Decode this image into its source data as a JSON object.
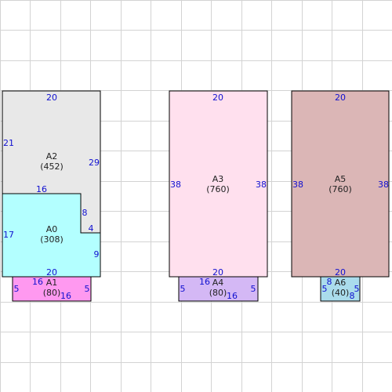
{
  "grid": {
    "line_color": "#d3d3d3",
    "background": "#ffffff"
  },
  "regions": [
    {
      "id": "A2",
      "name": "A2",
      "area": "(452)",
      "fill": "#e8e8e8",
      "dims": {
        "top": "20",
        "left": "21",
        "right": "29",
        "bottom": "16"
      }
    },
    {
      "id": "A0",
      "name": "A0",
      "area": "(308)",
      "fill": "#b3ffff",
      "dims": {
        "left": "17",
        "notch_vertical": "8",
        "notch_horizontal": "4",
        "right": "9",
        "bottom": "20"
      }
    },
    {
      "id": "A1",
      "name": "A1",
      "area": "(80)",
      "fill": "#ff99f0",
      "dims": {
        "top": "16",
        "left": "5",
        "right": "5",
        "bottom": "16"
      }
    },
    {
      "id": "A3",
      "name": "A3",
      "area": "(760)",
      "fill": "#ffe0ee",
      "dims": {
        "top": "20",
        "left": "38",
        "right": "38",
        "bottom": "20"
      }
    },
    {
      "id": "A4",
      "name": "A4",
      "area": "(80)",
      "fill": "#d4b8f5",
      "dims": {
        "top": "16",
        "left": "5",
        "right": "5",
        "bottom": "16"
      }
    },
    {
      "id": "A5",
      "name": "A5",
      "area": "(760)",
      "fill": "#dbb6b6",
      "dims": {
        "top": "20",
        "left": "38",
        "right": "38",
        "bottom": "20"
      }
    },
    {
      "id": "A6",
      "name": "A6",
      "area": "(40)",
      "fill": "#aadcec",
      "dims": {
        "top": "8",
        "left": "5",
        "right": "5",
        "bottom": "8"
      }
    }
  ]
}
